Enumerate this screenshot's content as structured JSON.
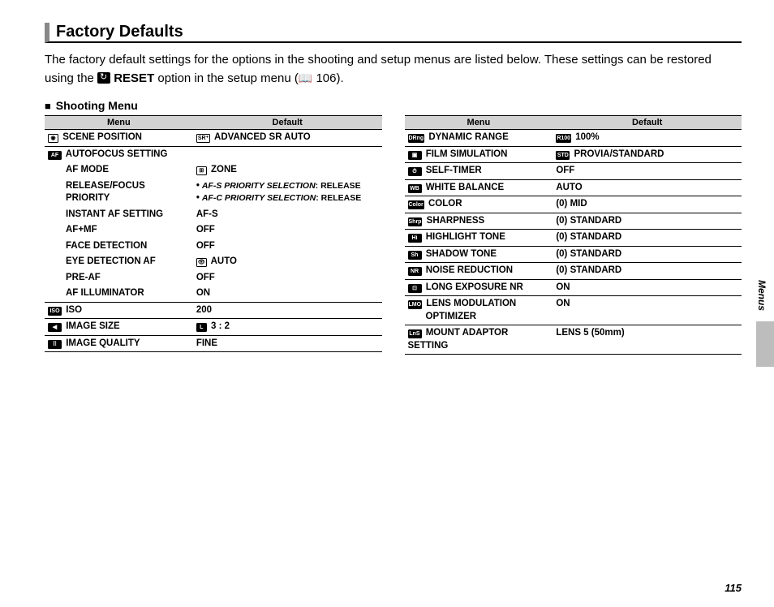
{
  "heading": "Factory Defaults",
  "intro_part1": "The factory default settings for the options in the shooting and setup menus are listed below.  These settings can be restored using the ",
  "intro_reset": "RESET",
  "intro_part2": " option in the setup menu (",
  "intro_ref": " 106).",
  "subheading": "Shooting Menu",
  "side_tab": "Menus",
  "page_number": "115",
  "table_headers": {
    "menu": "Menu",
    "default": "Default"
  },
  "left": {
    "r0": {
      "menu": "SCENE POSITION",
      "default": "ADVANCED SR AUTO"
    },
    "r1": {
      "menu": "AUTOFOCUS SETTING"
    },
    "r2": {
      "menu": "AF MODE",
      "default": "ZONE"
    },
    "r3": {
      "menu": "RELEASE/FOCUS PRIORITY",
      "l1a": "AF-S PRIORITY SELECTION",
      "l1b": "RELEASE",
      "l2a": "AF-C PRIORITY SELECTION",
      "l2b": "RELEASE"
    },
    "r4": {
      "menu": "INSTANT AF SETTING",
      "default": "AF-S"
    },
    "r5": {
      "menu": "AF+MF",
      "default": "OFF"
    },
    "r6": {
      "menu": "FACE DETECTION",
      "default": "OFF"
    },
    "r7": {
      "menu": "EYE DETECTION AF",
      "default": "AUTO"
    },
    "r8": {
      "menu": "PRE-AF",
      "default": "OFF"
    },
    "r9": {
      "menu": "AF ILLUMINATOR",
      "default": "ON"
    },
    "r10": {
      "menu": "ISO",
      "default": "200"
    },
    "r11": {
      "menu": "IMAGE SIZE",
      "default": "3 : 2"
    },
    "r12": {
      "menu": "IMAGE QUALITY",
      "default": "FINE"
    }
  },
  "right": {
    "r0": {
      "menu": "DYNAMIC RANGE",
      "default": "100%"
    },
    "r1": {
      "menu": "FILM SIMULATION",
      "default": "PROVIA/STANDARD"
    },
    "r2": {
      "menu": "SELF-TIMER",
      "default": "OFF"
    },
    "r3": {
      "menu": "WHITE BALANCE",
      "default": "AUTO"
    },
    "r4": {
      "menu": "COLOR",
      "default": "(0) MID"
    },
    "r5": {
      "menu": "SHARPNESS",
      "default": "(0) STANDARD"
    },
    "r6": {
      "menu": "HIGHLIGHT TONE",
      "default": "(0) STANDARD"
    },
    "r7": {
      "menu": "SHADOW TONE",
      "default": "(0) STANDARD"
    },
    "r8": {
      "menu": "NOISE REDUCTION",
      "default": "(0) STANDARD"
    },
    "r9": {
      "menu": "LONG EXPOSURE NR",
      "default": "ON"
    },
    "r10": {
      "menu1": "LENS MODULATION",
      "menu2": "OPTIMIZER",
      "default": "ON"
    },
    "r11": {
      "menu": "MOUNT ADAPTOR SETTING",
      "default": "LENS 5 (50mm)"
    }
  }
}
